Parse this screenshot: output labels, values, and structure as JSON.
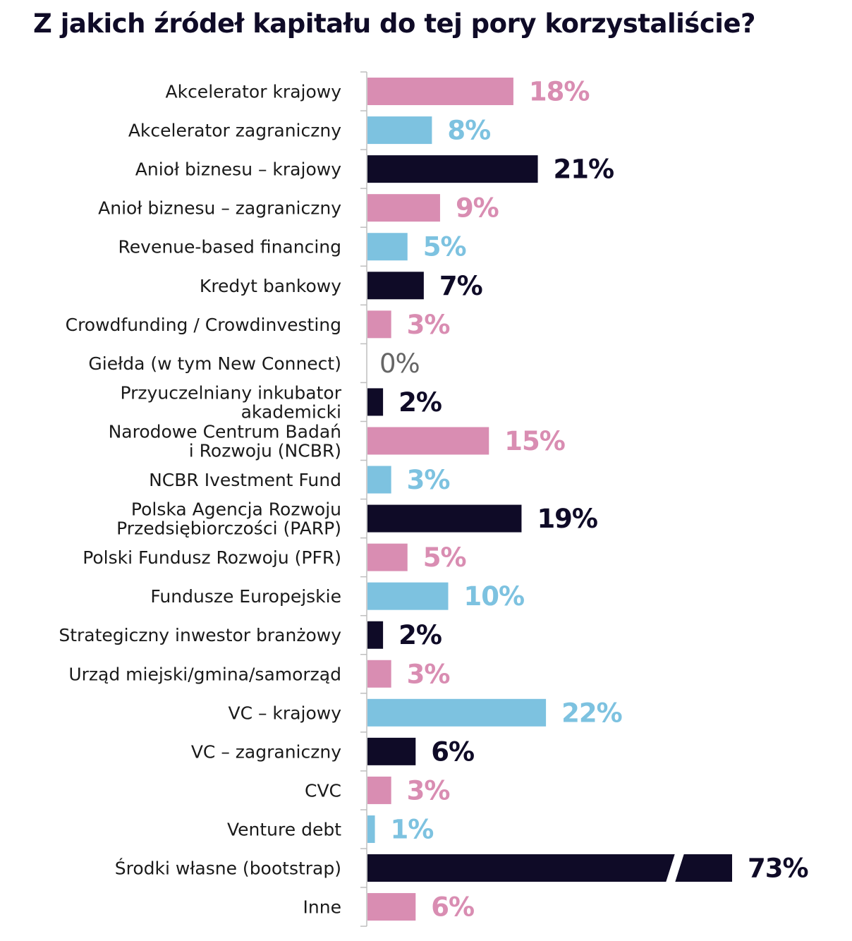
{
  "chart_data": {
    "type": "bar",
    "orientation": "horizontal",
    "title": "Z jakich źródeł kapitału do tej pory korzystaliście?",
    "categories": [
      [
        "Akcelerator krajowy"
      ],
      [
        "Akcelerator zagraniczny"
      ],
      [
        "Anioł biznesu – krajowy"
      ],
      [
        "Anioł biznesu – zagraniczny"
      ],
      [
        "Revenue-based financing"
      ],
      [
        "Kredyt bankowy"
      ],
      [
        "Crowdfunding / Crowdinvesting"
      ],
      [
        "Giełda (w tym New Connect)"
      ],
      [
        "Przyuczelniany inkubator",
        "akademicki"
      ],
      [
        "Narodowe Centrum Badań",
        "i Rozwoju (NCBR)"
      ],
      [
        "NCBR Ivestment Fund"
      ],
      [
        "Polska Agencja Rozwoju",
        "Przedsiębiorczości (PARP)"
      ],
      [
        "Polski Fundusz Rozwoju (PFR)"
      ],
      [
        "Fundusze Europejskie"
      ],
      [
        "Strategiczny inwestor branżowy"
      ],
      [
        "Urząd miejski/gmina/samorząd"
      ],
      [
        "VC – krajowy"
      ],
      [
        "VC – zagraniczny"
      ],
      [
        "CVC"
      ],
      [
        "Venture debt"
      ],
      [
        "Środki własne (bootstrap)"
      ],
      [
        "Inne"
      ]
    ],
    "values": [
      18,
      8,
      21,
      9,
      5,
      7,
      3,
      0,
      2,
      15,
      3,
      19,
      5,
      10,
      2,
      3,
      22,
      6,
      3,
      1,
      73,
      6
    ],
    "value_labels": [
      "18%",
      "8%",
      "21%",
      "9%",
      "5%",
      "7%",
      "3%",
      "0%",
      "2%",
      "15%",
      "3%",
      "19%",
      "5%",
      "10%",
      "2%",
      "3%",
      "22%",
      "6%",
      "3%",
      "1%",
      "73%",
      "6%"
    ],
    "unit": "%",
    "broken_axis_for_values_above": 30,
    "colors": {
      "pink": "#d98db2",
      "blue": "#7dc2e0",
      "dark": "#0f0b27",
      "zero": "#666666",
      "axis": "#bfbfbf"
    },
    "color_cycle": [
      "pink",
      "blue",
      "dark"
    ],
    "grid": false,
    "legend": "none"
  }
}
